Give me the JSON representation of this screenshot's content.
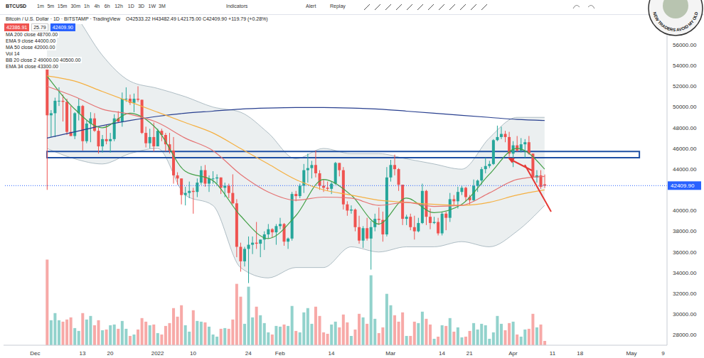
{
  "toolbar": {
    "symbol": "BTCUSD",
    "intervals": [
      "1m",
      "5m",
      "15m",
      "30m",
      "1h",
      "4h",
      "6h",
      "12h",
      "1D",
      "3D",
      "1W",
      "3M"
    ],
    "buttons": [
      "Indicators",
      "Alert",
      "Replay"
    ]
  },
  "watermark": "NEW TRADERS AVOID MY OLD",
  "chart_data": {
    "type": "candlestick",
    "title": "Bitcoin / U.S. Dollar · 1D · BITSTAMP · TradingView",
    "subtitle": "O42533.22 H43482.49 L42175.00 C42409.90 +119.79 (+0.28%)",
    "price_tags": [
      {
        "text": "42386.91",
        "color": "#ef5350"
      },
      {
        "text": "25.79"
      },
      {
        "text": "42409.90",
        "color": "#2962ff"
      }
    ],
    "x": [
      "2021-12-04",
      "2021-12-05",
      "2021-12-06",
      "2021-12-07",
      "2021-12-08",
      "2021-12-09",
      "2021-12-10",
      "2021-12-11",
      "2021-12-12",
      "2021-12-13",
      "2021-12-14",
      "2021-12-15",
      "2021-12-16",
      "2021-12-17",
      "2021-12-18",
      "2021-12-19",
      "2021-12-20",
      "2021-12-21",
      "2021-12-22",
      "2021-12-23",
      "2021-12-24",
      "2021-12-25",
      "2021-12-26",
      "2021-12-27",
      "2021-12-28",
      "2021-12-29",
      "2021-12-30",
      "2021-12-31",
      "2022-01-01",
      "2022-01-02",
      "2022-01-03",
      "2022-01-04",
      "2022-01-05",
      "2022-01-06",
      "2022-01-07",
      "2022-01-08",
      "2022-01-09",
      "2022-01-10",
      "2022-01-11",
      "2022-01-12",
      "2022-01-13",
      "2022-01-14",
      "2022-01-15",
      "2022-01-16",
      "2022-01-17",
      "2022-01-18",
      "2022-01-19",
      "2022-01-20",
      "2022-01-21",
      "2022-01-22",
      "2022-01-23",
      "2022-01-24",
      "2022-01-25",
      "2022-01-26",
      "2022-01-27",
      "2022-01-28",
      "2022-01-29",
      "2022-01-30",
      "2022-01-31",
      "2022-02-01",
      "2022-02-02",
      "2022-02-03",
      "2022-02-04",
      "2022-02-05",
      "2022-02-06",
      "2022-02-07",
      "2022-02-08",
      "2022-02-09",
      "2022-02-10",
      "2022-02-11",
      "2022-02-12",
      "2022-02-13",
      "2022-02-14",
      "2022-02-15",
      "2022-02-16",
      "2022-02-17",
      "2022-02-18",
      "2022-02-19",
      "2022-02-20",
      "2022-02-21",
      "2022-02-22",
      "2022-02-23",
      "2022-02-24",
      "2022-02-25",
      "2022-02-26",
      "2022-02-27",
      "2022-02-28",
      "2022-03-01",
      "2022-03-02",
      "2022-03-03",
      "2022-03-04",
      "2022-03-05",
      "2022-03-06",
      "2022-03-07",
      "2022-03-08",
      "2022-03-09",
      "2022-03-10",
      "2022-03-11",
      "2022-03-12",
      "2022-03-13",
      "2022-03-14",
      "2022-03-15",
      "2022-03-16",
      "2022-03-17",
      "2022-03-18",
      "2022-03-19",
      "2022-03-20",
      "2022-03-21",
      "2022-03-22",
      "2022-03-23",
      "2022-03-24",
      "2022-03-25",
      "2022-03-26",
      "2022-03-27",
      "2022-03-28",
      "2022-03-29",
      "2022-03-30",
      "2022-03-31",
      "2022-04-01",
      "2022-04-02",
      "2022-04-03",
      "2022-04-04",
      "2022-04-05",
      "2022-04-06",
      "2022-04-07",
      "2022-04-08",
      "2022-04-09"
    ],
    "open": [
      53700,
      49200,
      49400,
      50600,
      50600,
      50500,
      47600,
      47200,
      49400,
      50100,
      46700,
      48400,
      48900,
      47700,
      46200,
      46900,
      46700,
      46900,
      48900,
      48600,
      50800,
      50800,
      50400,
      50800,
      50700,
      47500,
      46500,
      47100,
      46200,
      47700,
      47300,
      46400,
      45800,
      43400,
      43100,
      41500,
      41700,
      41900,
      41800,
      42700,
      43900,
      42600,
      43100,
      43100,
      43200,
      42200,
      42400,
      41700,
      40700,
      36500,
      35100,
      36300,
      36700,
      36900,
      36800,
      37200,
      37700,
      38200,
      37900,
      38500,
      38700,
      37000,
      37300,
      41600,
      41400,
      42400,
      43900,
      44100,
      44400,
      43600,
      42400,
      42200,
      42100,
      42600,
      44600,
      43900,
      40600,
      40000,
      40100,
      38400,
      37100,
      38300,
      37300,
      38400,
      39200,
      39100,
      37700,
      43200,
      44400,
      44000,
      42500,
      39200,
      39400,
      38400,
      38000,
      38800,
      41900,
      39400,
      38800,
      38900,
      37800,
      39700,
      39300,
      41100,
      40900,
      41800,
      42200,
      41300,
      41000,
      42400,
      42900,
      44000,
      44300,
      44500,
      46800,
      47100,
      47400,
      47100,
      45500,
      46300,
      45800,
      46400,
      46600,
      45500,
      43200,
      43400,
      42533.22
    ],
    "high": [
      53900,
      49700,
      50900,
      51900,
      51200,
      50800,
      50100,
      49500,
      50800,
      50200,
      48700,
      49500,
      49400,
      48000,
      47300,
      48300,
      47500,
      49300,
      49600,
      51400,
      51900,
      51200,
      51300,
      52000,
      50700,
      48100,
      47900,
      48500,
      47900,
      47900,
      47500,
      47500,
      47100,
      43700,
      43100,
      42300,
      42800,
      42200,
      43100,
      44300,
      44400,
      43400,
      43800,
      43500,
      43200,
      42700,
      42600,
      43500,
      41100,
      36900,
      36500,
      37500,
      37500,
      38900,
      37200,
      38000,
      38700,
      38300,
      38700,
      39300,
      38800,
      37400,
      41800,
      41900,
      42600,
      44500,
      45500,
      44800,
      45800,
      43900,
      43000,
      42800,
      42800,
      44700,
      44600,
      44200,
      40900,
      40500,
      40200,
      39500,
      38500,
      39300,
      39000,
      39700,
      40300,
      39900,
      44200,
      44900,
      45400,
      44100,
      42500,
      39600,
      39700,
      39500,
      39300,
      42600,
      42000,
      40200,
      39400,
      39300,
      39900,
      39900,
      41700,
      41500,
      42300,
      42400,
      42300,
      41500,
      43000,
      43000,
      44200,
      45100,
      44800,
      46900,
      48200,
      48100,
      47700,
      47600,
      46700,
      47200,
      47000,
      46900,
      47200,
      45500,
      43900,
      43900,
      43482.49
    ],
    "low": [
      42000,
      47100,
      47100,
      50100,
      48600,
      47300,
      47200,
      46900,
      48700,
      45800,
      46500,
      46600,
      47600,
      45500,
      45600,
      46400,
      45600,
      46700,
      48500,
      48100,
      50500,
      50200,
      49500,
      50500,
      47400,
      46100,
      46000,
      45700,
      46200,
      46700,
      45700,
      45500,
      42600,
      42500,
      40600,
      40500,
      41200,
      39700,
      41300,
      42500,
      42300,
      41800,
      42600,
      42600,
      41600,
      41300,
      41200,
      40600,
      35500,
      34100,
      34600,
      33000,
      35800,
      36300,
      35500,
      36200,
      37300,
      37400,
      36700,
      38200,
      36600,
      36300,
      37100,
      40900,
      41200,
      41700,
      42700,
      43100,
      43200,
      42000,
      41800,
      41900,
      41600,
      42500,
      43300,
      40100,
      39500,
      39700,
      38000,
      36800,
      36400,
      37100,
      34300,
      38000,
      38600,
      37000,
      37500,
      42800,
      43400,
      41900,
      38600,
      38600,
      38100,
      37200,
      37900,
      38700,
      38600,
      38200,
      38700,
      37600,
      37600,
      38100,
      38900,
      40500,
      40200,
      41500,
      40900,
      40600,
      40900,
      41800,
      42500,
      43600,
      44100,
      44400,
      46700,
      46900,
      46600,
      45200,
      44200,
      45700,
      45600,
      45100,
      45400,
      43100,
      42700,
      42100,
      42175
    ],
    "close": [
      49200,
      49400,
      50600,
      50600,
      50500,
      47600,
      47200,
      49400,
      50100,
      46700,
      48400,
      48900,
      47700,
      46200,
      46900,
      46700,
      46900,
      48900,
      48600,
      50800,
      50800,
      50400,
      50800,
      50700,
      47500,
      46500,
      47100,
      46200,
      47700,
      47300,
      46400,
      45800,
      43400,
      43100,
      41500,
      41700,
      41900,
      41800,
      42700,
      43900,
      42600,
      43100,
      43100,
      43200,
      42200,
      42400,
      41700,
      40700,
      36500,
      35100,
      36300,
      36700,
      36900,
      36800,
      37200,
      37700,
      38200,
      37900,
      38500,
      38700,
      37000,
      37300,
      41600,
      41400,
      42400,
      43900,
      44100,
      44400,
      43600,
      42400,
      42200,
      42100,
      42600,
      44600,
      43900,
      40600,
      40000,
      40100,
      38400,
      37100,
      38300,
      37300,
      38400,
      39200,
      39100,
      37700,
      43200,
      44400,
      44000,
      42500,
      39200,
      39400,
      38400,
      38000,
      38800,
      41900,
      39400,
      38800,
      38900,
      37800,
      39700,
      39300,
      41100,
      40900,
      41800,
      42200,
      41300,
      41000,
      42400,
      42900,
      44000,
      44300,
      44500,
      46800,
      47100,
      47400,
      47100,
      45500,
      46300,
      45800,
      46400,
      46600,
      45500,
      43200,
      43400,
      42290.11,
      42409.9
    ],
    "volume": [
      12000,
      3500,
      4500,
      3500,
      3300,
      3600,
      3900,
      2400,
      2000,
      4500,
      3600,
      4100,
      2800,
      3500,
      2100,
      2200,
      2800,
      2900,
      2300,
      3400,
      2300,
      1300,
      1500,
      2200,
      3800,
      3300,
      2800,
      2900,
      1700,
      1500,
      2700,
      3100,
      5200,
      4000,
      5600,
      2800,
      1900,
      4900,
      3400,
      3300,
      3200,
      2600,
      1500,
      1200,
      2300,
      2400,
      2300,
      3600,
      8600,
      6800,
      3000,
      8200,
      3900,
      5400,
      4200,
      3100,
      1800,
      1500,
      2700,
      2600,
      2900,
      2700,
      5500,
      2000,
      1800,
      4600,
      5200,
      3000,
      5400,
      4100,
      1800,
      1600,
      2900,
      3300,
      2500,
      4300,
      3200,
      1300,
      2200,
      4400,
      3900,
      3000,
      9800,
      3700,
      1700,
      2500,
      7200,
      5600,
      4200,
      3300,
      4600,
      1300,
      1300,
      3300,
      3100,
      4700,
      3700,
      2900,
      900,
      1200,
      2800,
      2700,
      3800,
      1900,
      2500,
      1100,
      1200,
      2000,
      3100,
      2200,
      3000,
      2800,
      900,
      1800,
      4100,
      3000,
      2100,
      3100,
      3300,
      1500,
      1200,
      2200,
      2300,
      4400,
      2500,
      2900,
      600
    ],
    "volume_name": "Vol 14",
    "indicators": {
      "x": [
        "2021-12-04",
        "2021-12-11",
        "2021-12-18",
        "2021-12-25",
        "2022-01-01",
        "2022-01-08",
        "2022-01-15",
        "2022-01-22",
        "2022-01-29",
        "2022-02-05",
        "2022-02-12",
        "2022-02-19",
        "2022-02-26",
        "2022-03-05",
        "2022-03-12",
        "2022-03-19",
        "2022-03-26",
        "2022-04-02",
        "2022-04-09"
      ],
      "series": [
        {
          "name": "MA 200 close 48700.00",
          "color": "#283f8f",
          "values": [
            47000,
            47600,
            48200,
            48700,
            49100,
            49400,
            49600,
            49800,
            49900,
            49950,
            49950,
            49900,
            49800,
            49600,
            49400,
            49200,
            49000,
            48800,
            48700
          ]
        },
        {
          "name": "EMA 9 close 44000.00",
          "color": "#43a047",
          "values": [
            53000,
            49800,
            48000,
            49400,
            47800,
            43800,
            42900,
            39500,
            37300,
            39500,
            43000,
            41500,
            38700,
            41200,
            39800,
            40600,
            43500,
            46000,
            44000
          ]
        },
        {
          "name": "MA 50 close 42000.00",
          "color": "#f5b041",
          "values": [
            53000,
            52500,
            51500,
            50500,
            49500,
            48500,
            47500,
            46000,
            44500,
            43000,
            42000,
            41500,
            41000,
            40800,
            40600,
            40500,
            40800,
            41500,
            42000
          ]
        },
        {
          "name": "EMA 34 close 43300.00",
          "color": "#e57373",
          "values": [
            52000,
            51000,
            49800,
            49300,
            48500,
            47000,
            45800,
            43500,
            41800,
            41000,
            41300,
            41200,
            40500,
            40800,
            40400,
            40500,
            41700,
            43000,
            43300
          ]
        }
      ],
      "bands": {
        "name": "BB 20 close 2 49000.00 40500.00",
        "color": "#90a4ae",
        "upper": [
          62000,
          59000,
          55000,
          52500,
          51800,
          51000,
          50000,
          49500,
          47500,
          45000,
          46000,
          45500,
          45500,
          45000,
          44500,
          44000,
          47000,
          49000,
          49000
        ],
        "lower": [
          46000,
          45000,
          44500,
          45500,
          46000,
          41500,
          40500,
          34500,
          33500,
          34500,
          34500,
          36500,
          36000,
          36500,
          36500,
          37000,
          36500,
          38000,
          40500
        ]
      }
    },
    "xlim": [
      "2021-11-23",
      "2022-05-10"
    ],
    "xticks": [
      {
        "value": "2021-12-01",
        "label": "Dec"
      },
      {
        "value": "2021-12-13",
        "label": "13"
      },
      {
        "value": "2021-12-20",
        "label": "20"
      },
      {
        "value": "2022-01-01",
        "label": "2022"
      },
      {
        "value": "2022-01-10",
        "label": "10"
      },
      {
        "value": "2022-01-24",
        "label": "24"
      },
      {
        "value": "2022-02-01",
        "label": "Feb"
      },
      {
        "value": "2022-02-14",
        "label": "14"
      },
      {
        "value": "2022-03-01",
        "label": "Mar"
      },
      {
        "value": "2022-03-14",
        "label": "14"
      },
      {
        "value": "2022-03-21",
        "label": "21"
      },
      {
        "value": "2022-04-01",
        "label": "Apr"
      },
      {
        "value": "2022-04-11",
        "label": "11"
      },
      {
        "value": "2022-04-18",
        "label": "18"
      },
      {
        "value": "2022-05-01",
        "label": "May"
      },
      {
        "value": "2022-05-09",
        "label": "9"
      }
    ],
    "ylim": [
      27000,
      58000
    ],
    "yticks": [
      {
        "value": 28000,
        "label": "28000.00"
      },
      {
        "value": 30000,
        "label": "30000.00"
      },
      {
        "value": 32000,
        "label": "32000.00"
      },
      {
        "value": 34000,
        "label": "34000.00"
      },
      {
        "value": 36000,
        "label": "36000.00"
      },
      {
        "value": 38000,
        "label": "38000.00"
      },
      {
        "value": 40000,
        "label": "40000.00"
      },
      {
        "value": 44000,
        "label": "44000.00"
      },
      {
        "value": 46000,
        "label": "46000.00"
      },
      {
        "value": 48000,
        "label": "48000.00"
      },
      {
        "value": 50000,
        "label": "50000.00"
      },
      {
        "value": 52000,
        "label": "52000.00"
      },
      {
        "value": 54000,
        "label": "54000.00"
      },
      {
        "value": 56000,
        "label": "56000.00"
      }
    ],
    "y2lim": [
      0,
      45000
    ],
    "zone": {
      "x": [
        "2021-12-04",
        "2022-05-03"
      ],
      "y": [
        45100,
        45700
      ],
      "color": "#1e4fa3"
    },
    "last_price": {
      "value": 42409.9,
      "label": "42409.90",
      "color": "#2962ff"
    },
    "grid": false
  }
}
